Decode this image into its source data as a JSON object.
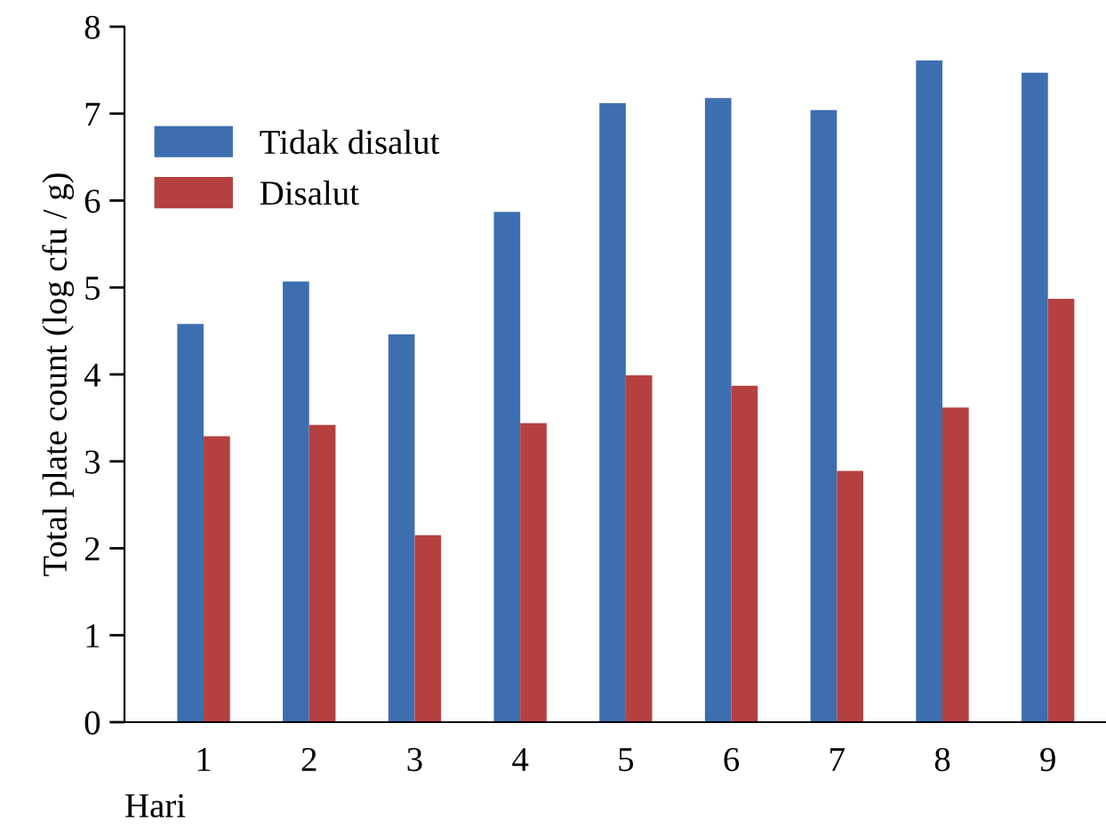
{
  "chart_data": {
    "type": "bar",
    "xlabel": "Hari",
    "ylabel": "Total plate count (log cfu / g)",
    "categories": [
      "1",
      "2",
      "3",
      "4",
      "5",
      "6",
      "7",
      "8",
      "9"
    ],
    "series": [
      {
        "name": "Tidak disalut",
        "color": "#3d6fb0",
        "values": [
          4.58,
          5.07,
          4.46,
          5.87,
          7.12,
          7.18,
          7.04,
          7.61,
          7.47
        ]
      },
      {
        "name": "Disalut",
        "color": "#b54040",
        "values": [
          3.29,
          3.42,
          2.15,
          3.44,
          3.99,
          3.87,
          2.89,
          3.62,
          4.87
        ]
      }
    ],
    "ylim": [
      0,
      8
    ],
    "yticks": [
      0,
      1,
      2,
      3,
      4,
      5,
      6,
      7,
      8
    ],
    "grid": false,
    "legend": "top left"
  }
}
